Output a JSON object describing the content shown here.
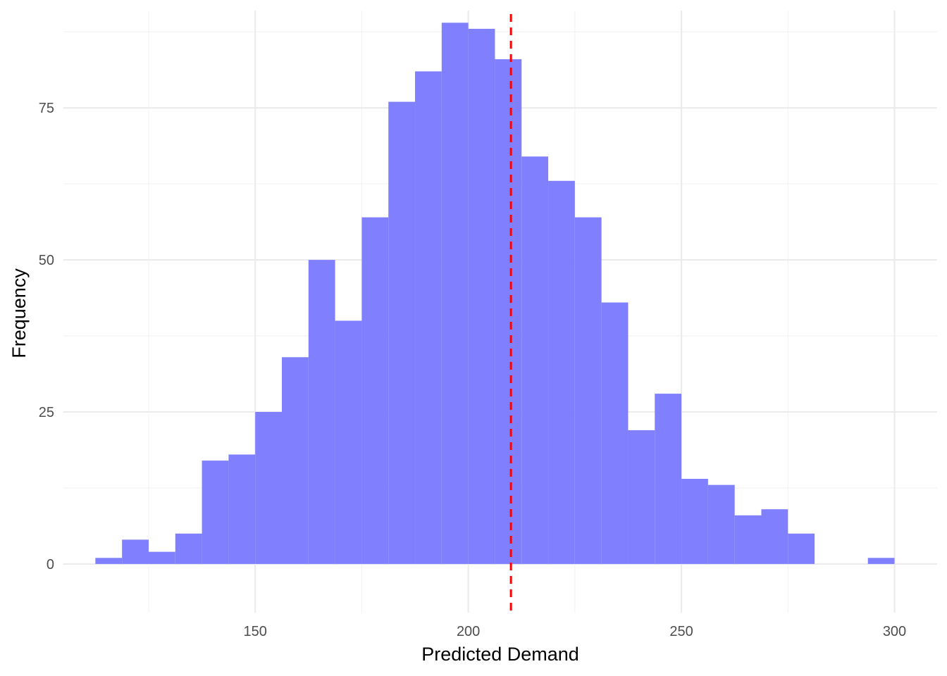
{
  "chart_data": {
    "type": "bar",
    "subtype": "histogram",
    "xlabel": "Predicted Demand",
    "ylabel": "Frequency",
    "xlim": [
      105,
      310
    ],
    "ylim": [
      -8,
      91
    ],
    "x_ticks": [
      150,
      200,
      250,
      300
    ],
    "x_tick_labels": [
      "150",
      "200",
      "250",
      "300"
    ],
    "x_minor_ticks": [
      125,
      175,
      225,
      275
    ],
    "y_ticks": [
      0,
      25,
      50,
      75
    ],
    "y_tick_labels": [
      "0",
      "25",
      "50",
      "75"
    ],
    "y_minor_ticks": [
      12.5,
      37.5,
      62.5,
      87.5
    ],
    "grid": true,
    "bar_color": "#8080ff",
    "bins": [
      {
        "x0": 112.5,
        "x1": 118.75,
        "count": 1
      },
      {
        "x0": 118.75,
        "x1": 125.0,
        "count": 4
      },
      {
        "x0": 125.0,
        "x1": 131.25,
        "count": 2
      },
      {
        "x0": 131.25,
        "x1": 137.5,
        "count": 5
      },
      {
        "x0": 137.5,
        "x1": 143.75,
        "count": 17
      },
      {
        "x0": 143.75,
        "x1": 150.0,
        "count": 18
      },
      {
        "x0": 150.0,
        "x1": 156.25,
        "count": 25
      },
      {
        "x0": 156.25,
        "x1": 162.5,
        "count": 34
      },
      {
        "x0": 162.5,
        "x1": 168.75,
        "count": 50
      },
      {
        "x0": 168.75,
        "x1": 175.0,
        "count": 40
      },
      {
        "x0": 175.0,
        "x1": 181.25,
        "count": 57
      },
      {
        "x0": 181.25,
        "x1": 187.5,
        "count": 76
      },
      {
        "x0": 187.5,
        "x1": 193.75,
        "count": 81
      },
      {
        "x0": 193.75,
        "x1": 200.0,
        "count": 89
      },
      {
        "x0": 200.0,
        "x1": 206.25,
        "count": 88
      },
      {
        "x0": 206.25,
        "x1": 212.5,
        "count": 83
      },
      {
        "x0": 212.5,
        "x1": 218.75,
        "count": 67
      },
      {
        "x0": 218.75,
        "x1": 225.0,
        "count": 63
      },
      {
        "x0": 225.0,
        "x1": 231.25,
        "count": 57
      },
      {
        "x0": 231.25,
        "x1": 237.5,
        "count": 43
      },
      {
        "x0": 237.5,
        "x1": 243.75,
        "count": 22
      },
      {
        "x0": 243.75,
        "x1": 250.0,
        "count": 28
      },
      {
        "x0": 250.0,
        "x1": 256.25,
        "count": 14
      },
      {
        "x0": 256.25,
        "x1": 262.5,
        "count": 13
      },
      {
        "x0": 262.5,
        "x1": 268.75,
        "count": 8
      },
      {
        "x0": 268.75,
        "x1": 275.0,
        "count": 9
      },
      {
        "x0": 275.0,
        "x1": 281.25,
        "count": 5
      },
      {
        "x0": 281.25,
        "x1": 287.5,
        "count": 0
      },
      {
        "x0": 287.5,
        "x1": 293.75,
        "count": 0
      },
      {
        "x0": 293.75,
        "x1": 300.0,
        "count": 1
      }
    ],
    "reference_line": {
      "x": 210,
      "color": "#ff0000",
      "style": "dashed"
    }
  }
}
